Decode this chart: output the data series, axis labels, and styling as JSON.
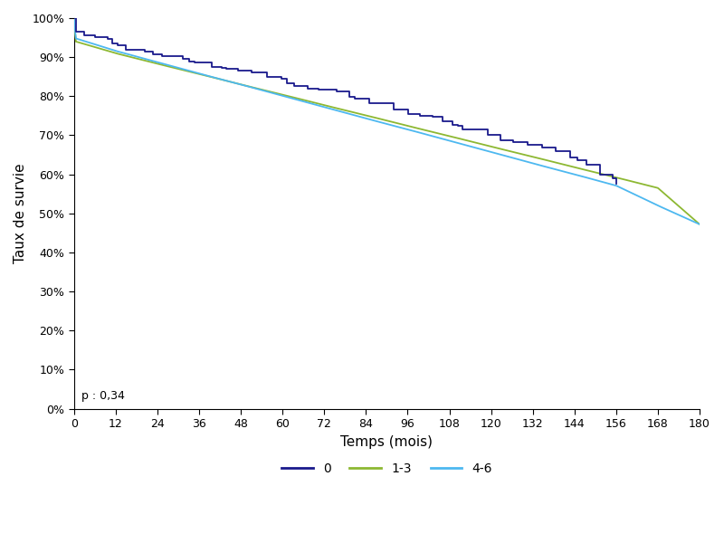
{
  "title": "",
  "xlabel": "Temps (mois)",
  "ylabel": "Taux de survie",
  "xlim": [
    0,
    180
  ],
  "ylim": [
    0,
    1.0
  ],
  "xticks": [
    0,
    12,
    24,
    36,
    48,
    60,
    72,
    84,
    96,
    108,
    120,
    132,
    144,
    156,
    168,
    180
  ],
  "yticks": [
    0.0,
    0.1,
    0.2,
    0.3,
    0.4,
    0.5,
    0.6,
    0.7,
    0.8,
    0.9,
    1.0
  ],
  "p_value_text": "p : 0,34",
  "legend_labels": [
    "0",
    "1-3",
    "4-6"
  ],
  "line_colors": [
    "#1a1a8c",
    "#8db832",
    "#4db8f0"
  ],
  "background_color": "#ffffff",
  "curve0_anchor_t": [
    0,
    0.5,
    12,
    24,
    36,
    48,
    60,
    72,
    84,
    96,
    108,
    120,
    132,
    144,
    154,
    156
  ],
  "curve0_anchor_s": [
    1.0,
    0.966,
    0.935,
    0.908,
    0.886,
    0.863,
    0.84,
    0.816,
    0.79,
    0.759,
    0.73,
    0.7,
    0.671,
    0.64,
    0.6,
    0.577
  ],
  "curve1_t": [
    0,
    0.5,
    12,
    24,
    36,
    48,
    60,
    72,
    84,
    96,
    108,
    120,
    132,
    144,
    156,
    168,
    180
  ],
  "curve1_s": [
    1.0,
    0.94,
    0.91,
    0.883,
    0.857,
    0.83,
    0.804,
    0.777,
    0.751,
    0.724,
    0.698,
    0.671,
    0.645,
    0.618,
    0.592,
    0.565,
    0.472
  ],
  "curve2_t": [
    0,
    0.5,
    12,
    24,
    36,
    48,
    60,
    72,
    84,
    96,
    108,
    120,
    132,
    144,
    156,
    168,
    180
  ],
  "curve2_s": [
    1.0,
    0.948,
    0.916,
    0.887,
    0.858,
    0.83,
    0.801,
    0.772,
    0.743,
    0.715,
    0.686,
    0.657,
    0.628,
    0.6,
    0.571,
    0.52,
    0.472
  ]
}
